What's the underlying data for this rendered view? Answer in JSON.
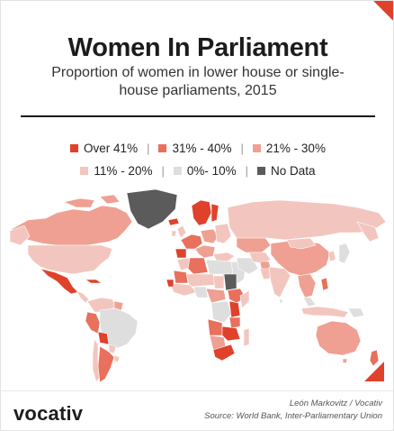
{
  "header": {
    "title": "Women In Parliament",
    "subtitle": "Proportion of women in lower house or single-house parliaments, 2015"
  },
  "legend": {
    "items": [
      {
        "label": "Over 41%",
        "color": "#e0412a"
      },
      {
        "label": "31% - 40%",
        "color": "#e8705c"
      },
      {
        "label": "21% - 30%",
        "color": "#efa093"
      },
      {
        "label": "11% - 20%",
        "color": "#f2c6bf"
      },
      {
        "label": "0%- 10%",
        "color": "#dedede"
      },
      {
        "label": "No Data",
        "color": "#5b5b5b"
      }
    ]
  },
  "colors": {
    "accent": "#e0412a",
    "ocean": "#ffffff"
  },
  "footer": {
    "brand": "vocativ",
    "credit_author": "León Markovitz / Vocativ",
    "credit_source": "Source: World Bank, Inter-Parliamentary Union"
  }
}
